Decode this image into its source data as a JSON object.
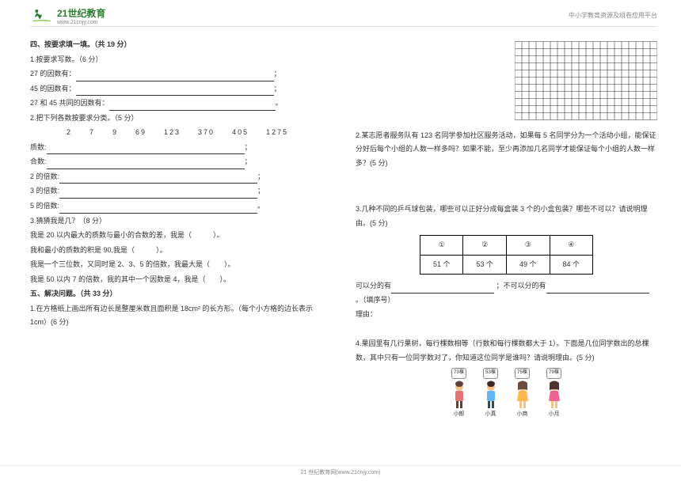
{
  "header": {
    "logo_text": "21世纪教育",
    "logo_sub": "www.21cnjy.com",
    "right_text": "中小学教育资源及组卷应用平台"
  },
  "left": {
    "title": "四、按要求填一填。（共 19 分）",
    "q1": "1.按要求写数。（6 分）",
    "line_27": "27 的因数有：",
    "line_45": "45 的因数有：",
    "line_common": "27 和 45 共同的因数有：",
    "q2": "2.把下列各数按要求分类。（5 分）",
    "numbers": "2　　7　　9　　69　　123　　370　　405　　1275",
    "label_zhi": "质数:",
    "label_he": "合数:",
    "label_2bei": "2 的倍数:",
    "label_3bei": "3 的倍数:",
    "label_5bei": "5 的倍数:",
    "q3": "3.猜猜我是几？（8 分）",
    "g1": "我是 20 以内最大的质数与最小的合数的差，我是（　　　）。",
    "g2": "我和最小的质数的积是 90,我是（　　　）。",
    "g3": "我是一个三位数，又同时是 2、3、5 的倍数，我最大是（　　）。",
    "g4": "我是 50 以内 7 的倍数，我的其中一个因数是 4，我是（　　）。",
    "title5": "五、解决问题。（共 33 分）",
    "q5_1": "1.在方格纸上画出所有边长是整厘米数且面积是 18cm² 的长方形。（每个小方格的边长表示 1cm）(6 分)"
  },
  "right": {
    "q2": "2.某志愿者服务队有 123 名同学参加社区服务活动，如果每 5 名同学分为一个活动小组，能保证分好后每个小组的人数一样多吗？如果不能，至少再添加几名同学才能保证每个小组的人数一样多？(5 分)",
    "q3": "3.几种不同的乒乓球包装，哪些可以正好分成每盒装 3 个的小盒包装？哪些不可以？请说明理由。(5 分)",
    "table": {
      "h1": "①",
      "h2": "②",
      "h3": "③",
      "h4": "④",
      "c1": "51 个",
      "c2": "53 个",
      "c3": "49 个",
      "c4": "84 个"
    },
    "can_label": "可以分的有",
    "cannot_label": "；不可以分的有",
    "tail": "。（填序号）",
    "reason": "理由：",
    "q4": "4.果园里有几行果树，每行棵数相等（行数和每行棵数都大于 1）。下面是几位同学数出的总棵数，其中只有一位同学数对了，你知道这位同学是谁吗？请说明理由。(5 分)",
    "students": {
      "s1": {
        "badge": "73棵",
        "name": "小郎"
      },
      "s2": {
        "badge": "53棵",
        "name": "小真"
      },
      "s3": {
        "badge": "75棵",
        "name": "小商"
      },
      "s4": {
        "badge": "79棵",
        "name": "小月"
      }
    },
    "grid": {
      "cols": 20,
      "rows": 11,
      "cell": 9,
      "stroke": "#333333"
    }
  },
  "footer": "21 世纪教育网(www.21cnjy.com)"
}
